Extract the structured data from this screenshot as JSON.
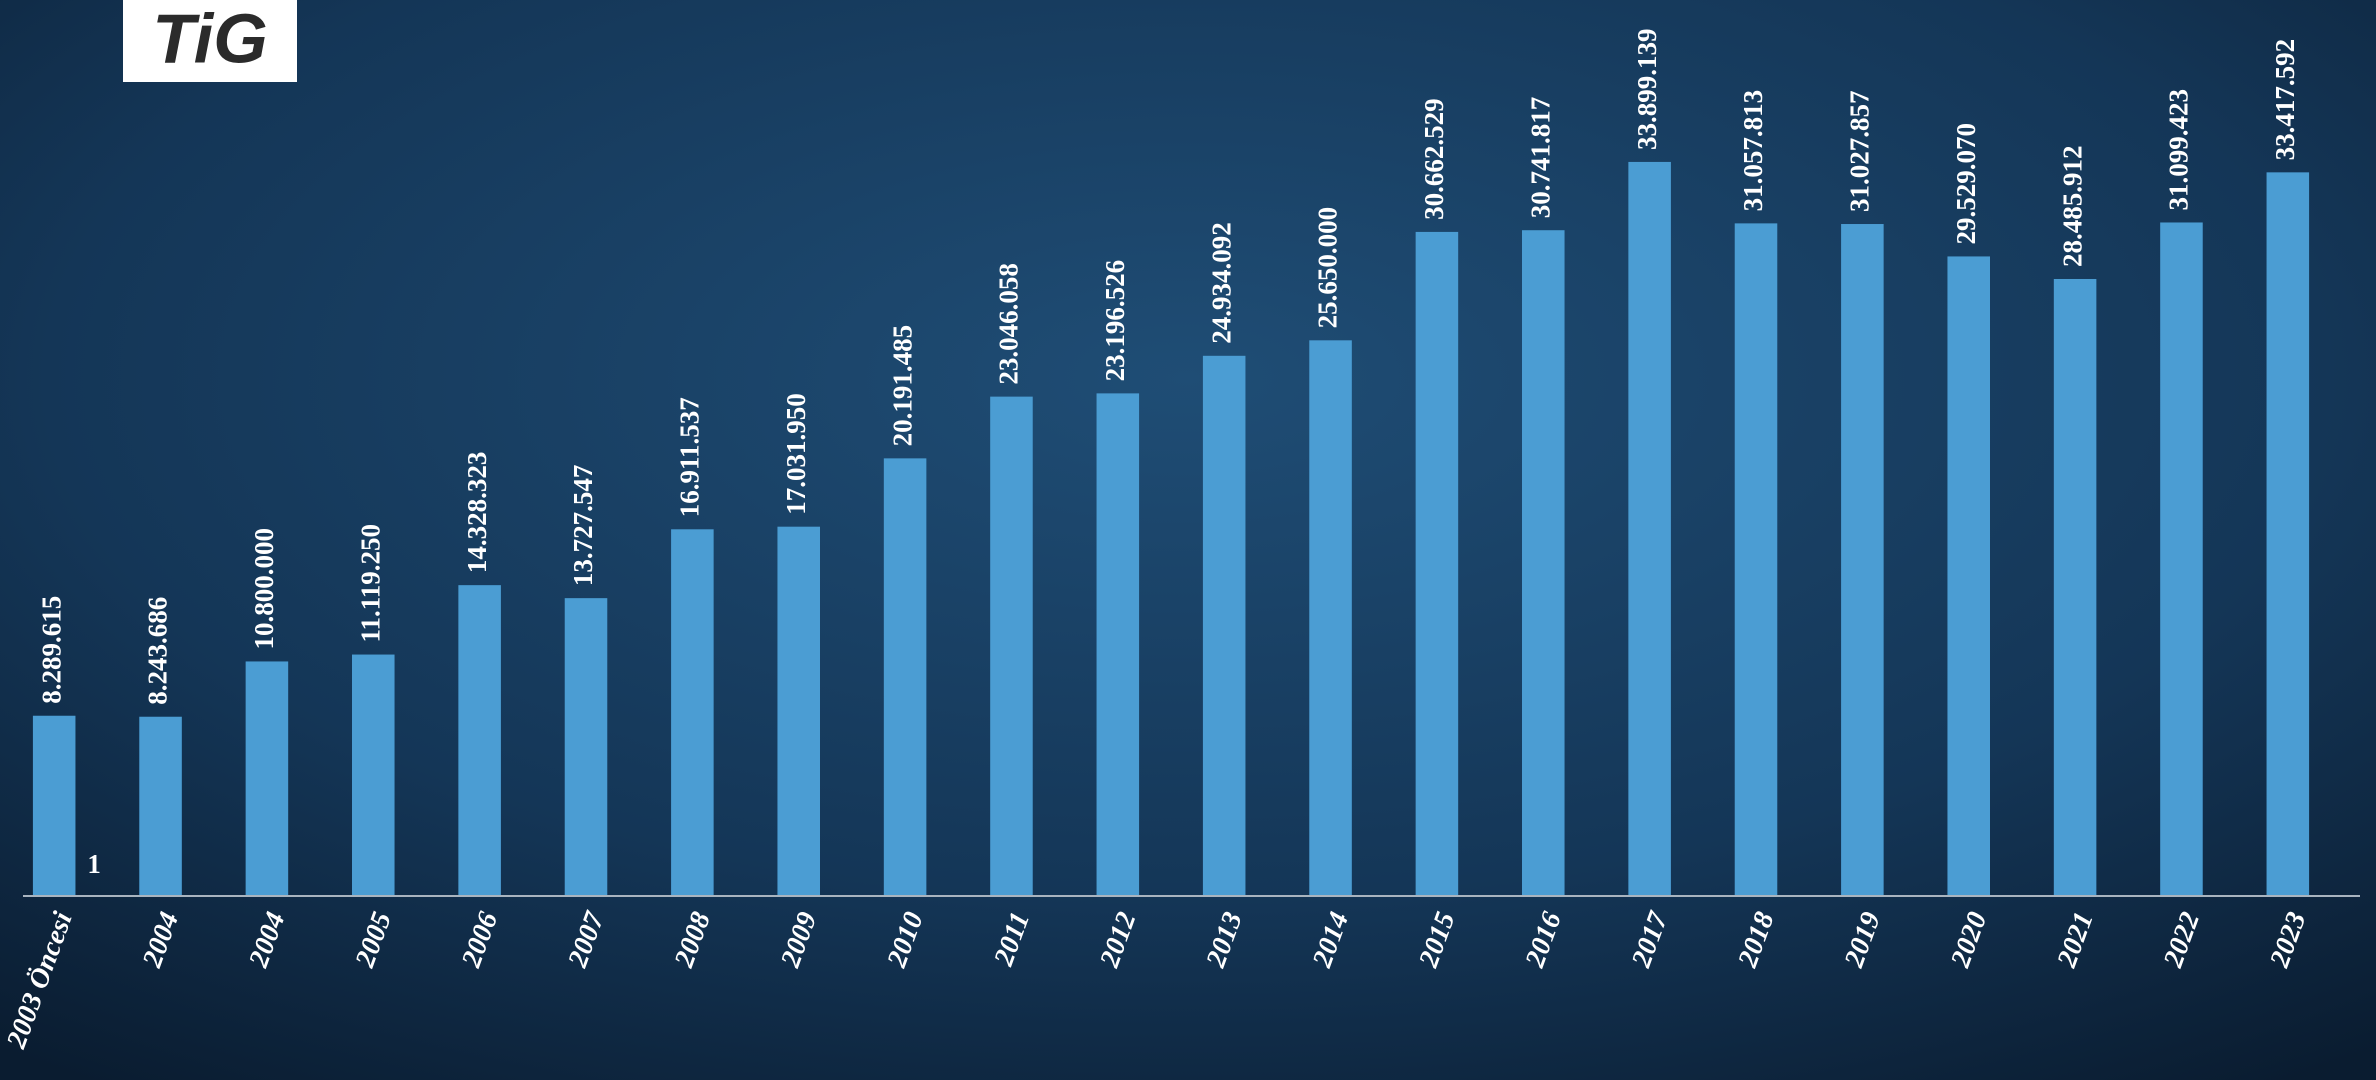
{
  "logo": "TiG",
  "chart_data": {
    "type": "bar",
    "categories": [
      "2003 Öncesi",
      "2004",
      "2004",
      "2005",
      "2006",
      "2007",
      "2008",
      "2009",
      "2010",
      "2011",
      "2012",
      "2013",
      "2014",
      "2015",
      "2016",
      "2017",
      "2018",
      "2019",
      "2020",
      "2021",
      "2022",
      "2023"
    ],
    "ylim": [
      0,
      40000000
    ],
    "series": [
      {
        "color": "#4b9dd3",
        "values": [
          8289615,
          8243686,
          10800000,
          11119250,
          14328323,
          13727547,
          16911537,
          17031950,
          20191485,
          23046058,
          23196526,
          24934092,
          25650000,
          30662529,
          30741817,
          33899139,
          31057813,
          31027857,
          29529070,
          28485912,
          31099423,
          33417592
        ],
        "value_labels": [
          "8.289.615",
          "8.243.686",
          "10.800.000",
          "11.119.250",
          "14.328.323",
          "13.727.547",
          "16.911.537",
          "17.031.950",
          "20.191.485",
          "23.046.058",
          "23.196.526",
          "24.934.092",
          "25.650.000",
          "30.662.529",
          "30.741.817",
          "33.899.139",
          "31.057.813",
          "31.027.857",
          "29.529.070",
          "28.485.912",
          "31.099.423",
          "33.417.592"
        ]
      },
      {
        "color": "#4b9dd3",
        "values": [
          1,
          null,
          null,
          null,
          null,
          null,
          null,
          null,
          null,
          null,
          null,
          null,
          null,
          null,
          null,
          null,
          null,
          null,
          null,
          null,
          null,
          null
        ]
      }
    ]
  }
}
